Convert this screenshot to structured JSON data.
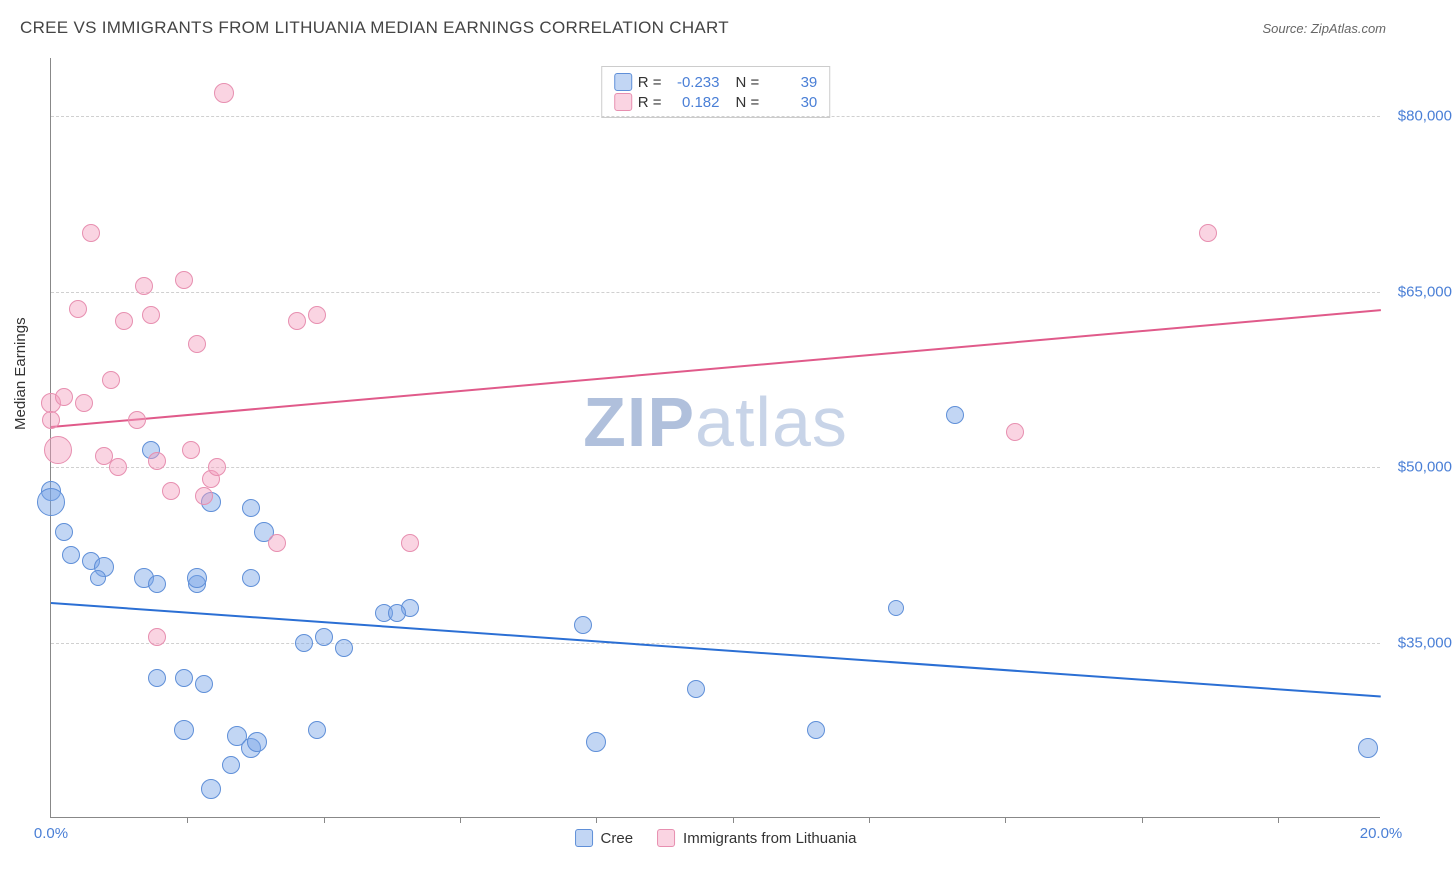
{
  "title": "CREE VS IMMIGRANTS FROM LITHUANIA MEDIAN EARNINGS CORRELATION CHART",
  "source": "Source: ZipAtlas.com",
  "ylabel": "Median Earnings",
  "watermark_bold": "ZIP",
  "watermark_light": "atlas",
  "chart": {
    "type": "scatter",
    "x_domain": [
      0,
      20
    ],
    "y_domain": [
      20000,
      85000
    ],
    "x_ticks": [
      0,
      20
    ],
    "x_tick_labels": [
      "0.0%",
      "20.0%"
    ],
    "x_minor_ticks": [
      2.05,
      4.1,
      6.15,
      8.2,
      10.25,
      12.3,
      14.35,
      16.4,
      18.45
    ],
    "y_ticks": [
      35000,
      50000,
      65000,
      80000
    ],
    "y_tick_labels": [
      "$35,000",
      "$50,000",
      "$65,000",
      "$80,000"
    ],
    "background": "#ffffff",
    "grid_color": "#d8d8d8",
    "axis_color": "#888888",
    "tick_label_color": "#4a7fd6",
    "series": [
      {
        "name": "Cree",
        "fill": "rgba(120,165,230,0.45)",
        "stroke": "#5f8fd8",
        "trend_color": "#2b6fd4",
        "R": "-0.233",
        "N": "39",
        "trend": {
          "x1": 0,
          "y1": 38500,
          "x2": 20,
          "y2": 30500
        },
        "points": [
          {
            "x": 0.0,
            "y": 48000,
            "r": 10
          },
          {
            "x": 0.0,
            "y": 47000,
            "r": 14
          },
          {
            "x": 0.2,
            "y": 44500,
            "r": 9
          },
          {
            "x": 0.3,
            "y": 42500,
            "r": 9
          },
          {
            "x": 0.6,
            "y": 42000,
            "r": 9
          },
          {
            "x": 0.8,
            "y": 41500,
            "r": 10
          },
          {
            "x": 0.7,
            "y": 40500,
            "r": 8
          },
          {
            "x": 1.4,
            "y": 40500,
            "r": 10
          },
          {
            "x": 1.6,
            "y": 40000,
            "r": 9
          },
          {
            "x": 1.5,
            "y": 51500,
            "r": 9
          },
          {
            "x": 2.2,
            "y": 40000,
            "r": 9
          },
          {
            "x": 2.2,
            "y": 40500,
            "r": 10
          },
          {
            "x": 3.0,
            "y": 46500,
            "r": 9
          },
          {
            "x": 3.2,
            "y": 44500,
            "r": 10
          },
          {
            "x": 3.0,
            "y": 40500,
            "r": 9
          },
          {
            "x": 2.4,
            "y": 47000,
            "r": 10
          },
          {
            "x": 2.0,
            "y": 32000,
            "r": 9
          },
          {
            "x": 2.3,
            "y": 31500,
            "r": 9
          },
          {
            "x": 1.6,
            "y": 32000,
            "r": 9
          },
          {
            "x": 2.0,
            "y": 27500,
            "r": 10
          },
          {
            "x": 2.8,
            "y": 27000,
            "r": 10
          },
          {
            "x": 3.0,
            "y": 26000,
            "r": 10
          },
          {
            "x": 3.1,
            "y": 26500,
            "r": 10
          },
          {
            "x": 2.7,
            "y": 24500,
            "r": 9
          },
          {
            "x": 3.8,
            "y": 35000,
            "r": 9
          },
          {
            "x": 4.1,
            "y": 35500,
            "r": 9
          },
          {
            "x": 4.0,
            "y": 27500,
            "r": 9
          },
          {
            "x": 4.4,
            "y": 34500,
            "r": 9
          },
          {
            "x": 5.0,
            "y": 37500,
            "r": 9
          },
          {
            "x": 5.4,
            "y": 38000,
            "r": 9
          },
          {
            "x": 5.2,
            "y": 37500,
            "r": 9
          },
          {
            "x": 8.0,
            "y": 36500,
            "r": 9
          },
          {
            "x": 8.2,
            "y": 26500,
            "r": 10
          },
          {
            "x": 9.7,
            "y": 31000,
            "r": 9
          },
          {
            "x": 11.5,
            "y": 27500,
            "r": 9
          },
          {
            "x": 12.7,
            "y": 38000,
            "r": 8
          },
          {
            "x": 13.6,
            "y": 54500,
            "r": 9
          },
          {
            "x": 19.8,
            "y": 26000,
            "r": 10
          },
          {
            "x": 2.4,
            "y": 22500,
            "r": 10
          }
        ]
      },
      {
        "name": "Immigrants from Lithuania",
        "fill": "rgba(245,160,190,0.45)",
        "stroke": "#e78fb0",
        "trend_color": "#e05a8a",
        "R": "0.182",
        "N": "30",
        "trend": {
          "x1": 0,
          "y1": 53500,
          "x2": 20,
          "y2": 63500
        },
        "points": [
          {
            "x": 0.0,
            "y": 55500,
            "r": 10
          },
          {
            "x": 0.0,
            "y": 54000,
            "r": 9
          },
          {
            "x": 0.1,
            "y": 51500,
            "r": 14
          },
          {
            "x": 0.2,
            "y": 56000,
            "r": 9
          },
          {
            "x": 0.4,
            "y": 63500,
            "r": 9
          },
          {
            "x": 0.5,
            "y": 55500,
            "r": 9
          },
          {
            "x": 0.6,
            "y": 70000,
            "r": 9
          },
          {
            "x": 0.8,
            "y": 51000,
            "r": 9
          },
          {
            "x": 0.9,
            "y": 57500,
            "r": 9
          },
          {
            "x": 1.1,
            "y": 62500,
            "r": 9
          },
          {
            "x": 1.4,
            "y": 65500,
            "r": 9
          },
          {
            "x": 1.3,
            "y": 54000,
            "r": 9
          },
          {
            "x": 1.5,
            "y": 63000,
            "r": 9
          },
          {
            "x": 1.6,
            "y": 50500,
            "r": 9
          },
          {
            "x": 1.8,
            "y": 48000,
            "r": 9
          },
          {
            "x": 2.0,
            "y": 66000,
            "r": 9
          },
          {
            "x": 2.1,
            "y": 51500,
            "r": 9
          },
          {
            "x": 2.2,
            "y": 60500,
            "r": 9
          },
          {
            "x": 2.4,
            "y": 49000,
            "r": 9
          },
          {
            "x": 2.6,
            "y": 82000,
            "r": 10
          },
          {
            "x": 1.6,
            "y": 35500,
            "r": 9
          },
          {
            "x": 2.3,
            "y": 47500,
            "r": 9
          },
          {
            "x": 3.4,
            "y": 43500,
            "r": 9
          },
          {
            "x": 3.7,
            "y": 62500,
            "r": 9
          },
          {
            "x": 4.0,
            "y": 63000,
            "r": 9
          },
          {
            "x": 2.5,
            "y": 50000,
            "r": 9
          },
          {
            "x": 5.4,
            "y": 43500,
            "r": 9
          },
          {
            "x": 14.5,
            "y": 53000,
            "r": 9
          },
          {
            "x": 17.4,
            "y": 70000,
            "r": 9
          },
          {
            "x": 1.0,
            "y": 50000,
            "r": 9
          }
        ]
      }
    ]
  },
  "legend_bottom": {
    "series1_label": "Cree",
    "series2_label": "Immigrants from Lithuania"
  },
  "legend_top": {
    "R_label": "R =",
    "N_label": "N ="
  }
}
